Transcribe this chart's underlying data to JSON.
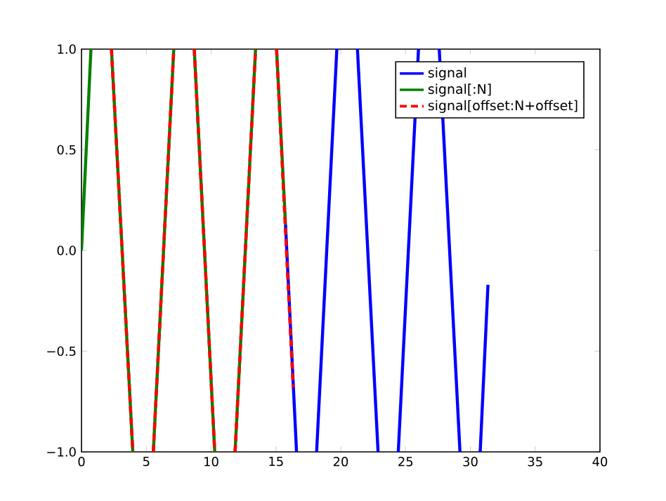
{
  "chart_data": {
    "type": "line",
    "xlim": [
      0,
      40
    ],
    "ylim": [
      -1,
      1
    ],
    "xticks": [
      0,
      5,
      10,
      15,
      20,
      25,
      30,
      35,
      40
    ],
    "yticks": [
      {
        "value": -1,
        "label": "−1.0"
      },
      {
        "value": -0.5,
        "label": "−0.5"
      },
      {
        "value": 0,
        "label": "0.0"
      },
      {
        "value": 0.5,
        "label": "0.5"
      },
      {
        "value": 1,
        "label": "1.0"
      }
    ],
    "legend": "top right",
    "grid": false,
    "marker": "none",
    "series": [
      {
        "name": "signal",
        "color": "#0000ff",
        "line_style": "solid",
        "x": [
          15.74,
          16.59,
          17.4,
          18.14,
          19.7,
          20.5,
          21.29,
          22.88,
          23.7,
          24.44,
          26.0,
          26.8,
          27.6,
          29.2,
          30.0,
          30.76,
          31.36
        ],
        "values": [
          0.13,
          -1,
          null,
          -1,
          1,
          null,
          1,
          -1,
          null,
          -1,
          1,
          null,
          1,
          -1,
          null,
          -1,
          -0.17
        ]
      },
      {
        "name": "signal[:N]",
        "color": "#008000",
        "line_style": "solid",
        "x": [
          0,
          0.73,
          1.5,
          2.31,
          3.96,
          4.7,
          5.54,
          7.12,
          7.9,
          8.7,
          10.28,
          11.1,
          11.85,
          13.43,
          14.2,
          15.05,
          15.74
        ],
        "values": [
          0,
          1,
          null,
          1,
          -1,
          null,
          -1,
          1,
          null,
          1,
          -1,
          null,
          -1,
          1,
          null,
          1,
          0.13
        ]
      },
      {
        "name": "signal[offset:N+offset]",
        "color": "#ff0000",
        "line_style": "dashed",
        "x": [
          2.31,
          3.96,
          4.7,
          5.54,
          7.12,
          7.9,
          8.7,
          10.28,
          11.1,
          11.85,
          13.43,
          14.2,
          15.05,
          16.33
        ],
        "values": [
          1,
          -1,
          null,
          -1,
          1,
          null,
          1,
          -1,
          null,
          -1,
          1,
          null,
          1,
          -0.68
        ]
      }
    ]
  }
}
